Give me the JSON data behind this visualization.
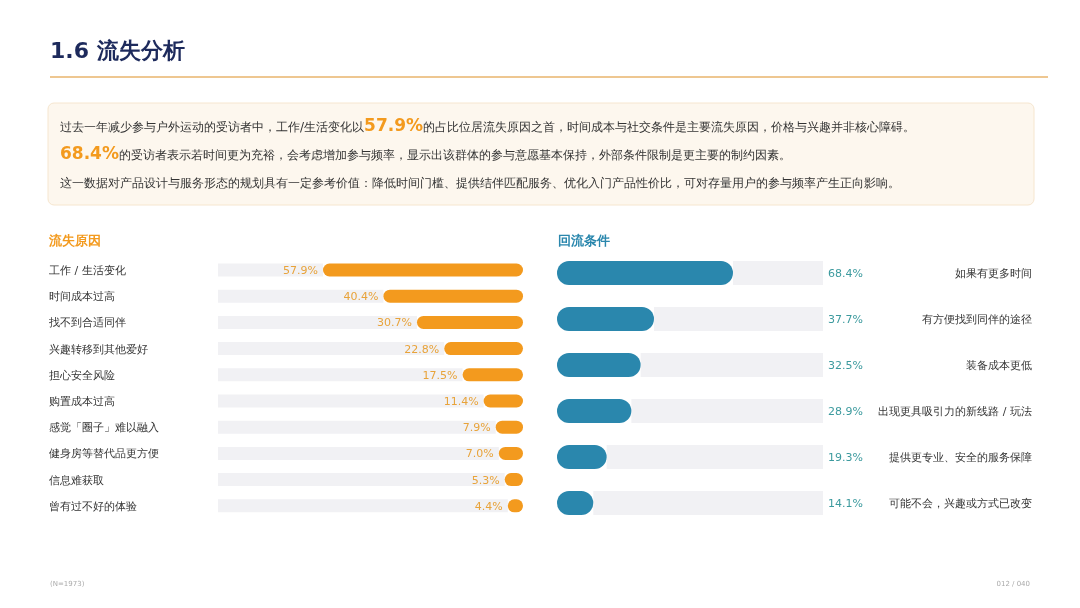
{
  "chart_data": [
    {
      "type": "other",
      "title": "1.6 流失分析",
      "annotations": [
        "过去一年减少参与户外运动的受访者中，工作/生活变化以57.9%的占比位居流失原因之首，时间成本与社交条件是主要流失原因，价格与兴趣并非核心障碍。",
        "68.4%的受访者表示若时间更为充裕，会考虑增加参与频率，显示出该群体的参与意愿基本保持，外部条件限制是更主要的制约因素。",
        "这一数据对产品设计与服务形态的规划具有一定参考价值：降低时间门槛、提供结伴匹配服务、优化入门产品性价比，可对存量用户的参与频率产生正向影响。"
      ]
    },
    {
      "type": "bar",
      "orientation": "horizontal",
      "title": "流失原因",
      "categories": [
        "工作 / 生活变化",
        "时间成本过高",
        "找不到合适同伴",
        "兴趣转移到其他爱好",
        "担心安全风险",
        "购置成本过高",
        "感觉「圈子」难以融入",
        "健身房等替代品更方便",
        "信息难获取",
        "曾有过不好的体验"
      ],
      "values": [
        57.9,
        40.4,
        30.7,
        22.8,
        17.5,
        11.4,
        7.9,
        7.0,
        5.3,
        4.4
      ],
      "value_labels": [
        "57.9%",
        "40.4%",
        "30.7%",
        "22.8%",
        "17.5%",
        "11.4%",
        "7.9%",
        "7.0%",
        "5.3%",
        "4.4%"
      ],
      "color": "#f39a1e",
      "annotations": [
        "(N=1973)"
      ]
    },
    {
      "type": "bar",
      "orientation": "horizontal",
      "title": "回流条件",
      "categories": [
        "如果有更多时间",
        "有方便找到同伴的途径",
        "装备成本更低",
        "出现更具吸引力的新线路 / 玩法",
        "提供更专业、安全的服务保障",
        "可能不会，兴趣或方式已改变"
      ],
      "values": [
        68.4,
        37.7,
        32.5,
        28.9,
        19.3,
        14.1
      ],
      "value_labels": [
        "68.4%",
        "37.7%",
        "32.5%",
        "28.9%",
        "19.3%",
        "14.1%"
      ],
      "color": "#2a87ad",
      "annotations": [
        "012 / 040"
      ]
    }
  ]
}
